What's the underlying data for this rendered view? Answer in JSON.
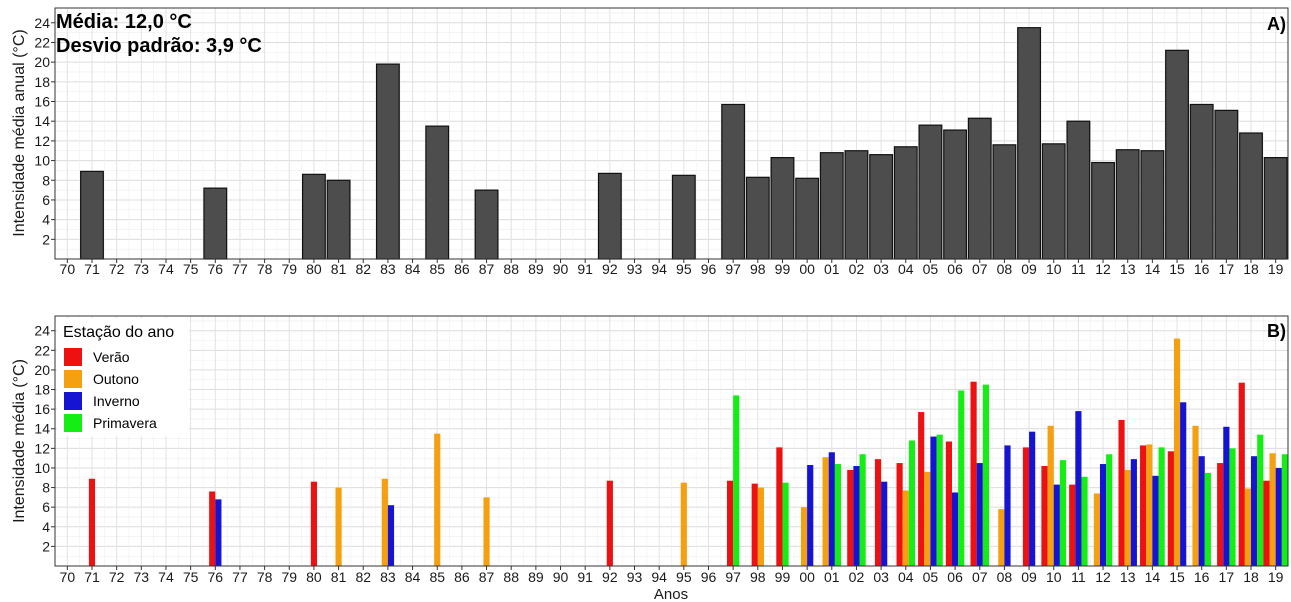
{
  "chart_data": [
    {
      "type": "bar",
      "panel_label": "A)",
      "annotations": [
        "Média: 12,0 °C",
        "Desvio padrão: 3,9 °C"
      ],
      "ylabel": "Intensidade média anual (°C)",
      "xlabel": "",
      "ylim": [
        0,
        25.5
      ],
      "yticks": [
        2,
        4,
        6,
        8,
        10,
        12,
        14,
        16,
        18,
        20,
        22,
        24
      ],
      "categories": [
        "70",
        "71",
        "72",
        "73",
        "74",
        "75",
        "76",
        "77",
        "78",
        "79",
        "80",
        "81",
        "82",
        "83",
        "84",
        "85",
        "86",
        "87",
        "88",
        "89",
        "90",
        "91",
        "92",
        "93",
        "94",
        "95",
        "96",
        "97",
        "98",
        "99",
        "00",
        "01",
        "02",
        "03",
        "04",
        "05",
        "06",
        "07",
        "08",
        "09",
        "10",
        "11",
        "12",
        "13",
        "14",
        "15",
        "16",
        "17",
        "18",
        "19"
      ],
      "values": [
        null,
        8.9,
        null,
        null,
        null,
        null,
        7.2,
        null,
        null,
        null,
        8.6,
        8.0,
        null,
        19.8,
        null,
        13.5,
        null,
        7.0,
        null,
        null,
        null,
        null,
        8.7,
        null,
        null,
        8.5,
        null,
        15.7,
        8.3,
        10.3,
        8.2,
        10.8,
        11.0,
        10.6,
        11.4,
        13.6,
        13.1,
        14.3,
        11.6,
        23.5,
        11.7,
        14.0,
        9.8,
        11.1,
        11.0,
        21.2,
        15.7,
        15.1,
        12.8,
        10.3
      ],
      "bar_color": "#4d4d4d",
      "grid": true
    },
    {
      "type": "bar",
      "panel_label": "B)",
      "ylabel": "Intensidade média (°C)",
      "xlabel": "Anos",
      "ylim": [
        0,
        25.5
      ],
      "yticks": [
        2,
        4,
        6,
        8,
        10,
        12,
        14,
        16,
        18,
        20,
        22,
        24
      ],
      "legend_title": "Estação do ano",
      "legend_position": "top-left",
      "categories": [
        "70",
        "71",
        "72",
        "73",
        "74",
        "75",
        "76",
        "77",
        "78",
        "79",
        "80",
        "81",
        "82",
        "83",
        "84",
        "85",
        "86",
        "87",
        "88",
        "89",
        "90",
        "91",
        "92",
        "93",
        "94",
        "95",
        "96",
        "97",
        "98",
        "99",
        "00",
        "01",
        "02",
        "03",
        "04",
        "05",
        "06",
        "07",
        "08",
        "09",
        "10",
        "11",
        "12",
        "13",
        "14",
        "15",
        "16",
        "17",
        "18",
        "19"
      ],
      "series": [
        {
          "name": "Verão",
          "color": "#ee1111",
          "values": [
            null,
            8.9,
            null,
            null,
            null,
            null,
            7.6,
            null,
            null,
            null,
            8.6,
            null,
            null,
            null,
            null,
            null,
            null,
            null,
            null,
            null,
            null,
            null,
            8.7,
            null,
            null,
            null,
            null,
            8.7,
            8.4,
            12.1,
            null,
            null,
            9.8,
            10.9,
            10.5,
            15.7,
            12.7,
            18.8,
            null,
            12.1,
            10.2,
            8.3,
            null,
            14.9,
            12.3,
            11.7,
            null,
            10.5,
            18.7,
            8.7
          ]
        },
        {
          "name": "Outono",
          "color": "#f5a010",
          "values": [
            null,
            null,
            null,
            null,
            null,
            null,
            null,
            null,
            null,
            null,
            null,
            8.0,
            null,
            8.9,
            null,
            13.5,
            null,
            7.0,
            null,
            null,
            null,
            null,
            null,
            null,
            null,
            8.5,
            null,
            null,
            8.0,
            null,
            6.0,
            11.1,
            null,
            null,
            7.7,
            9.6,
            null,
            null,
            5.8,
            null,
            14.3,
            null,
            7.4,
            9.8,
            12.4,
            23.2,
            14.3,
            null,
            7.9,
            11.5
          ]
        },
        {
          "name": "Inverno",
          "color": "#1414d2",
          "values": [
            null,
            null,
            null,
            null,
            null,
            null,
            6.8,
            null,
            null,
            null,
            null,
            null,
            null,
            6.2,
            null,
            null,
            null,
            null,
            null,
            null,
            null,
            null,
            null,
            null,
            null,
            null,
            null,
            null,
            null,
            null,
            10.3,
            11.6,
            10.2,
            8.6,
            null,
            13.2,
            7.5,
            10.5,
            12.3,
            13.7,
            8.3,
            15.8,
            10.4,
            10.9,
            9.2,
            16.7,
            11.2,
            14.2,
            11.2,
            10.0
          ]
        },
        {
          "name": "Primavera",
          "color": "#14ee14",
          "values": [
            null,
            null,
            null,
            null,
            null,
            null,
            null,
            null,
            null,
            null,
            null,
            null,
            null,
            null,
            null,
            null,
            null,
            null,
            null,
            null,
            null,
            null,
            null,
            null,
            null,
            null,
            null,
            17.4,
            null,
            8.5,
            null,
            10.4,
            11.4,
            null,
            12.8,
            13.4,
            17.9,
            18.5,
            null,
            null,
            10.8,
            9.1,
            11.4,
            null,
            12.1,
            null,
            9.5,
            12.0,
            13.4,
            11.4
          ]
        }
      ],
      "grid": true
    }
  ]
}
